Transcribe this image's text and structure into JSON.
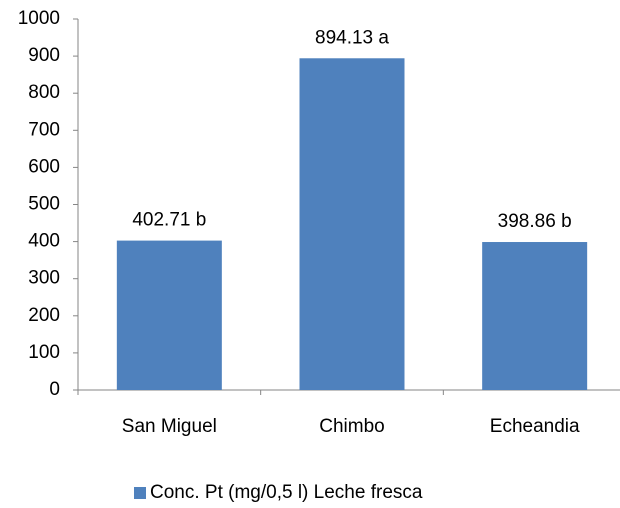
{
  "chart_data": {
    "type": "bar",
    "categories": [
      "San Miguel",
      "Chimbo",
      "Echeandia"
    ],
    "series": [
      {
        "name": "Conc. Pt (mg/0,5 l) Leche fresca",
        "color": "#4f81bd",
        "values": [
          402.71,
          894.13,
          398.86
        ],
        "value_labels": [
          "402.71 b",
          "894.13 a",
          "398.86 b"
        ]
      }
    ],
    "ylim": [
      0,
      1000
    ],
    "yticks": [
      0,
      100,
      200,
      300,
      400,
      500,
      600,
      700,
      800,
      900,
      1000
    ],
    "grid": false,
    "legend": "bottom"
  }
}
